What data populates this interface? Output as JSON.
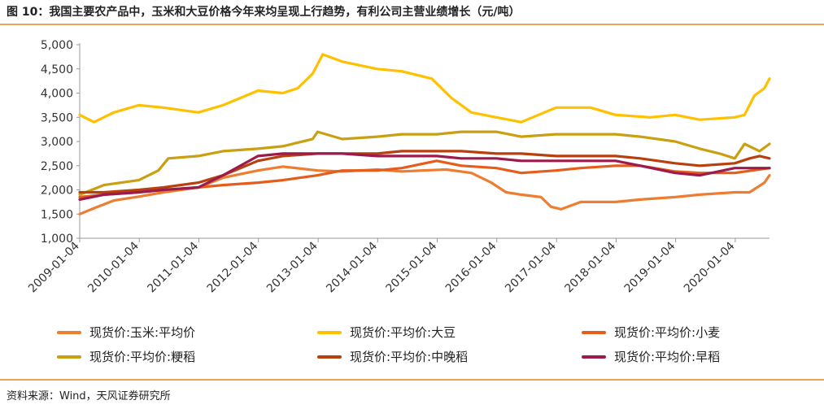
{
  "title": "图 10：我国主要农产品中，玉米和大豆价格今年来均呈现上行趋势，有利公司主营业绩增长（元/吨）",
  "source": "资料来源：Wind，天风证券研究所",
  "chart_data": {
    "type": "line",
    "ylim": [
      1000,
      5000
    ],
    "yticks": [
      1000,
      1500,
      2000,
      2500,
      3000,
      3500,
      4000,
      4500,
      5000
    ],
    "ytick_labels": [
      "1,000",
      "1,500",
      "2,000",
      "2,500",
      "3,000",
      "3,500",
      "4,000",
      "4,500",
      "5,000"
    ],
    "x_start": "2009-01-04",
    "x_end": "2020-08-01",
    "xticks": [
      "2009-01-04",
      "2010-01-04",
      "2011-01-04",
      "2012-01-04",
      "2013-01-04",
      "2014-01-04",
      "2015-01-04",
      "2016-01-04",
      "2017-01-04",
      "2018-01-04",
      "2019-01-04",
      "2020-01-04"
    ],
    "grid": false,
    "legend_position": "bottom",
    "series": [
      {
        "name": "现货价:玉米:平均价",
        "color": "#ed7d31",
        "x": [
          "2009-01-04",
          "2009-04-01",
          "2009-08-01",
          "2010-01-01",
          "2010-06-01",
          "2011-01-01",
          "2011-06-01",
          "2012-01-01",
          "2012-06-01",
          "2013-01-01",
          "2013-06-01",
          "2014-01-01",
          "2014-06-01",
          "2014-10-01",
          "2015-03-01",
          "2015-08-01",
          "2015-12-01",
          "2016-03-01",
          "2016-06-01",
          "2016-10-01",
          "2016-12-01",
          "2017-02-01",
          "2017-06-01",
          "2018-01-01",
          "2018-06-01",
          "2019-01-01",
          "2019-06-01",
          "2020-01-01",
          "2020-04-01",
          "2020-07-01",
          "2020-08-01"
        ],
        "values": [
          1500,
          1620,
          1780,
          1860,
          1950,
          2050,
          2250,
          2400,
          2480,
          2400,
          2380,
          2420,
          2380,
          2400,
          2420,
          2350,
          2150,
          1950,
          1900,
          1850,
          1650,
          1600,
          1750,
          1750,
          1800,
          1850,
          1900,
          1950,
          1950,
          2150,
          2300
        ]
      },
      {
        "name": "现货价:平均价:大豆",
        "color": "#ffc000",
        "x": [
          "2009-01-04",
          "2009-04-01",
          "2009-08-01",
          "2010-01-01",
          "2010-06-01",
          "2011-01-01",
          "2011-06-01",
          "2012-01-01",
          "2012-06-01",
          "2012-09-01",
          "2012-12-01",
          "2013-02-01",
          "2013-06-01",
          "2014-01-01",
          "2014-06-01",
          "2014-12-01",
          "2015-04-01",
          "2015-08-01",
          "2016-01-01",
          "2016-06-01",
          "2017-01-01",
          "2017-08-01",
          "2018-01-01",
          "2018-08-01",
          "2019-01-01",
          "2019-06-01",
          "2020-01-01",
          "2020-03-01",
          "2020-05-01",
          "2020-07-01",
          "2020-08-01"
        ],
        "values": [
          3550,
          3400,
          3600,
          3750,
          3700,
          3600,
          3750,
          4050,
          4000,
          4100,
          4400,
          4800,
          4650,
          4500,
          4450,
          4300,
          3900,
          3600,
          3500,
          3400,
          3700,
          3700,
          3550,
          3500,
          3550,
          3450,
          3500,
          3550,
          3950,
          4100,
          4300
        ]
      },
      {
        "name": "现货价:平均价:小麦",
        "color": "#e65c1a",
        "x": [
          "2009-01-04",
          "2009-06-01",
          "2010-01-01",
          "2010-06-01",
          "2011-01-01",
          "2011-06-01",
          "2012-01-01",
          "2012-06-01",
          "2013-01-01",
          "2013-06-01",
          "2014-01-01",
          "2014-06-01",
          "2015-01-01",
          "2015-06-01",
          "2016-01-01",
          "2016-06-01",
          "2017-01-01",
          "2017-06-01",
          "2018-01-01",
          "2018-06-01",
          "2019-01-01",
          "2019-06-01",
          "2020-01-01",
          "2020-08-01"
        ],
        "values": [
          1850,
          1900,
          1950,
          2000,
          2050,
          2100,
          2150,
          2200,
          2300,
          2400,
          2400,
          2450,
          2600,
          2500,
          2450,
          2350,
          2400,
          2450,
          2500,
          2500,
          2380,
          2350,
          2350,
          2450
        ]
      },
      {
        "name": "现货价:平均价:粳稻",
        "color": "#c9a012",
        "x": [
          "2009-01-04",
          "2009-06-01",
          "2010-01-01",
          "2010-05-01",
          "2010-07-01",
          "2011-01-01",
          "2011-06-01",
          "2012-01-01",
          "2012-06-01",
          "2012-12-01",
          "2013-01-01",
          "2013-06-01",
          "2014-01-01",
          "2014-06-01",
          "2015-01-01",
          "2015-06-01",
          "2016-01-01",
          "2016-06-01",
          "2017-01-01",
          "2017-06-01",
          "2018-01-01",
          "2018-06-01",
          "2019-01-01",
          "2019-06-01",
          "2019-10-01",
          "2020-01-01",
          "2020-03-01",
          "2020-06-01",
          "2020-08-01"
        ],
        "values": [
          1900,
          2100,
          2200,
          2400,
          2650,
          2700,
          2800,
          2850,
          2900,
          3050,
          3200,
          3050,
          3100,
          3150,
          3150,
          3200,
          3200,
          3100,
          3150,
          3150,
          3150,
          3100,
          3000,
          2850,
          2750,
          2650,
          2950,
          2800,
          2950
        ]
      },
      {
        "name": "现货价:平均价:中晚稻",
        "color": "#b7410e",
        "x": [
          "2009-01-04",
          "2009-06-01",
          "2010-01-01",
          "2010-06-01",
          "2011-01-01",
          "2011-06-01",
          "2012-01-01",
          "2012-06-01",
          "2013-01-01",
          "2013-06-01",
          "2014-01-01",
          "2014-06-01",
          "2015-01-01",
          "2015-06-01",
          "2016-01-01",
          "2016-06-01",
          "2017-01-01",
          "2017-06-01",
          "2018-01-01",
          "2018-06-01",
          "2019-01-01",
          "2019-06-01",
          "2020-01-01",
          "2020-04-01",
          "2020-06-01",
          "2020-08-01"
        ],
        "values": [
          1950,
          1950,
          2000,
          2050,
          2150,
          2300,
          2600,
          2700,
          2750,
          2750,
          2750,
          2800,
          2800,
          2800,
          2750,
          2750,
          2700,
          2700,
          2700,
          2650,
          2550,
          2500,
          2550,
          2650,
          2700,
          2650
        ]
      },
      {
        "name": "现货价:平均价:早稻",
        "color": "#9b1b4d",
        "x": [
          "2009-01-04",
          "2009-06-01",
          "2010-01-01",
          "2010-06-01",
          "2011-01-01",
          "2011-06-01",
          "2012-01-01",
          "2012-06-01",
          "2013-01-01",
          "2013-06-01",
          "2014-01-01",
          "2014-06-01",
          "2015-01-01",
          "2015-06-01",
          "2016-01-01",
          "2016-06-01",
          "2017-01-01",
          "2017-06-01",
          "2018-01-01",
          "2018-06-01",
          "2019-01-01",
          "2019-06-01",
          "2020-01-01",
          "2020-08-01"
        ],
        "values": [
          1800,
          1900,
          1950,
          2000,
          2050,
          2300,
          2700,
          2750,
          2750,
          2750,
          2700,
          2700,
          2700,
          2650,
          2650,
          2600,
          2600,
          2600,
          2600,
          2500,
          2350,
          2300,
          2450,
          2450
        ]
      }
    ]
  }
}
